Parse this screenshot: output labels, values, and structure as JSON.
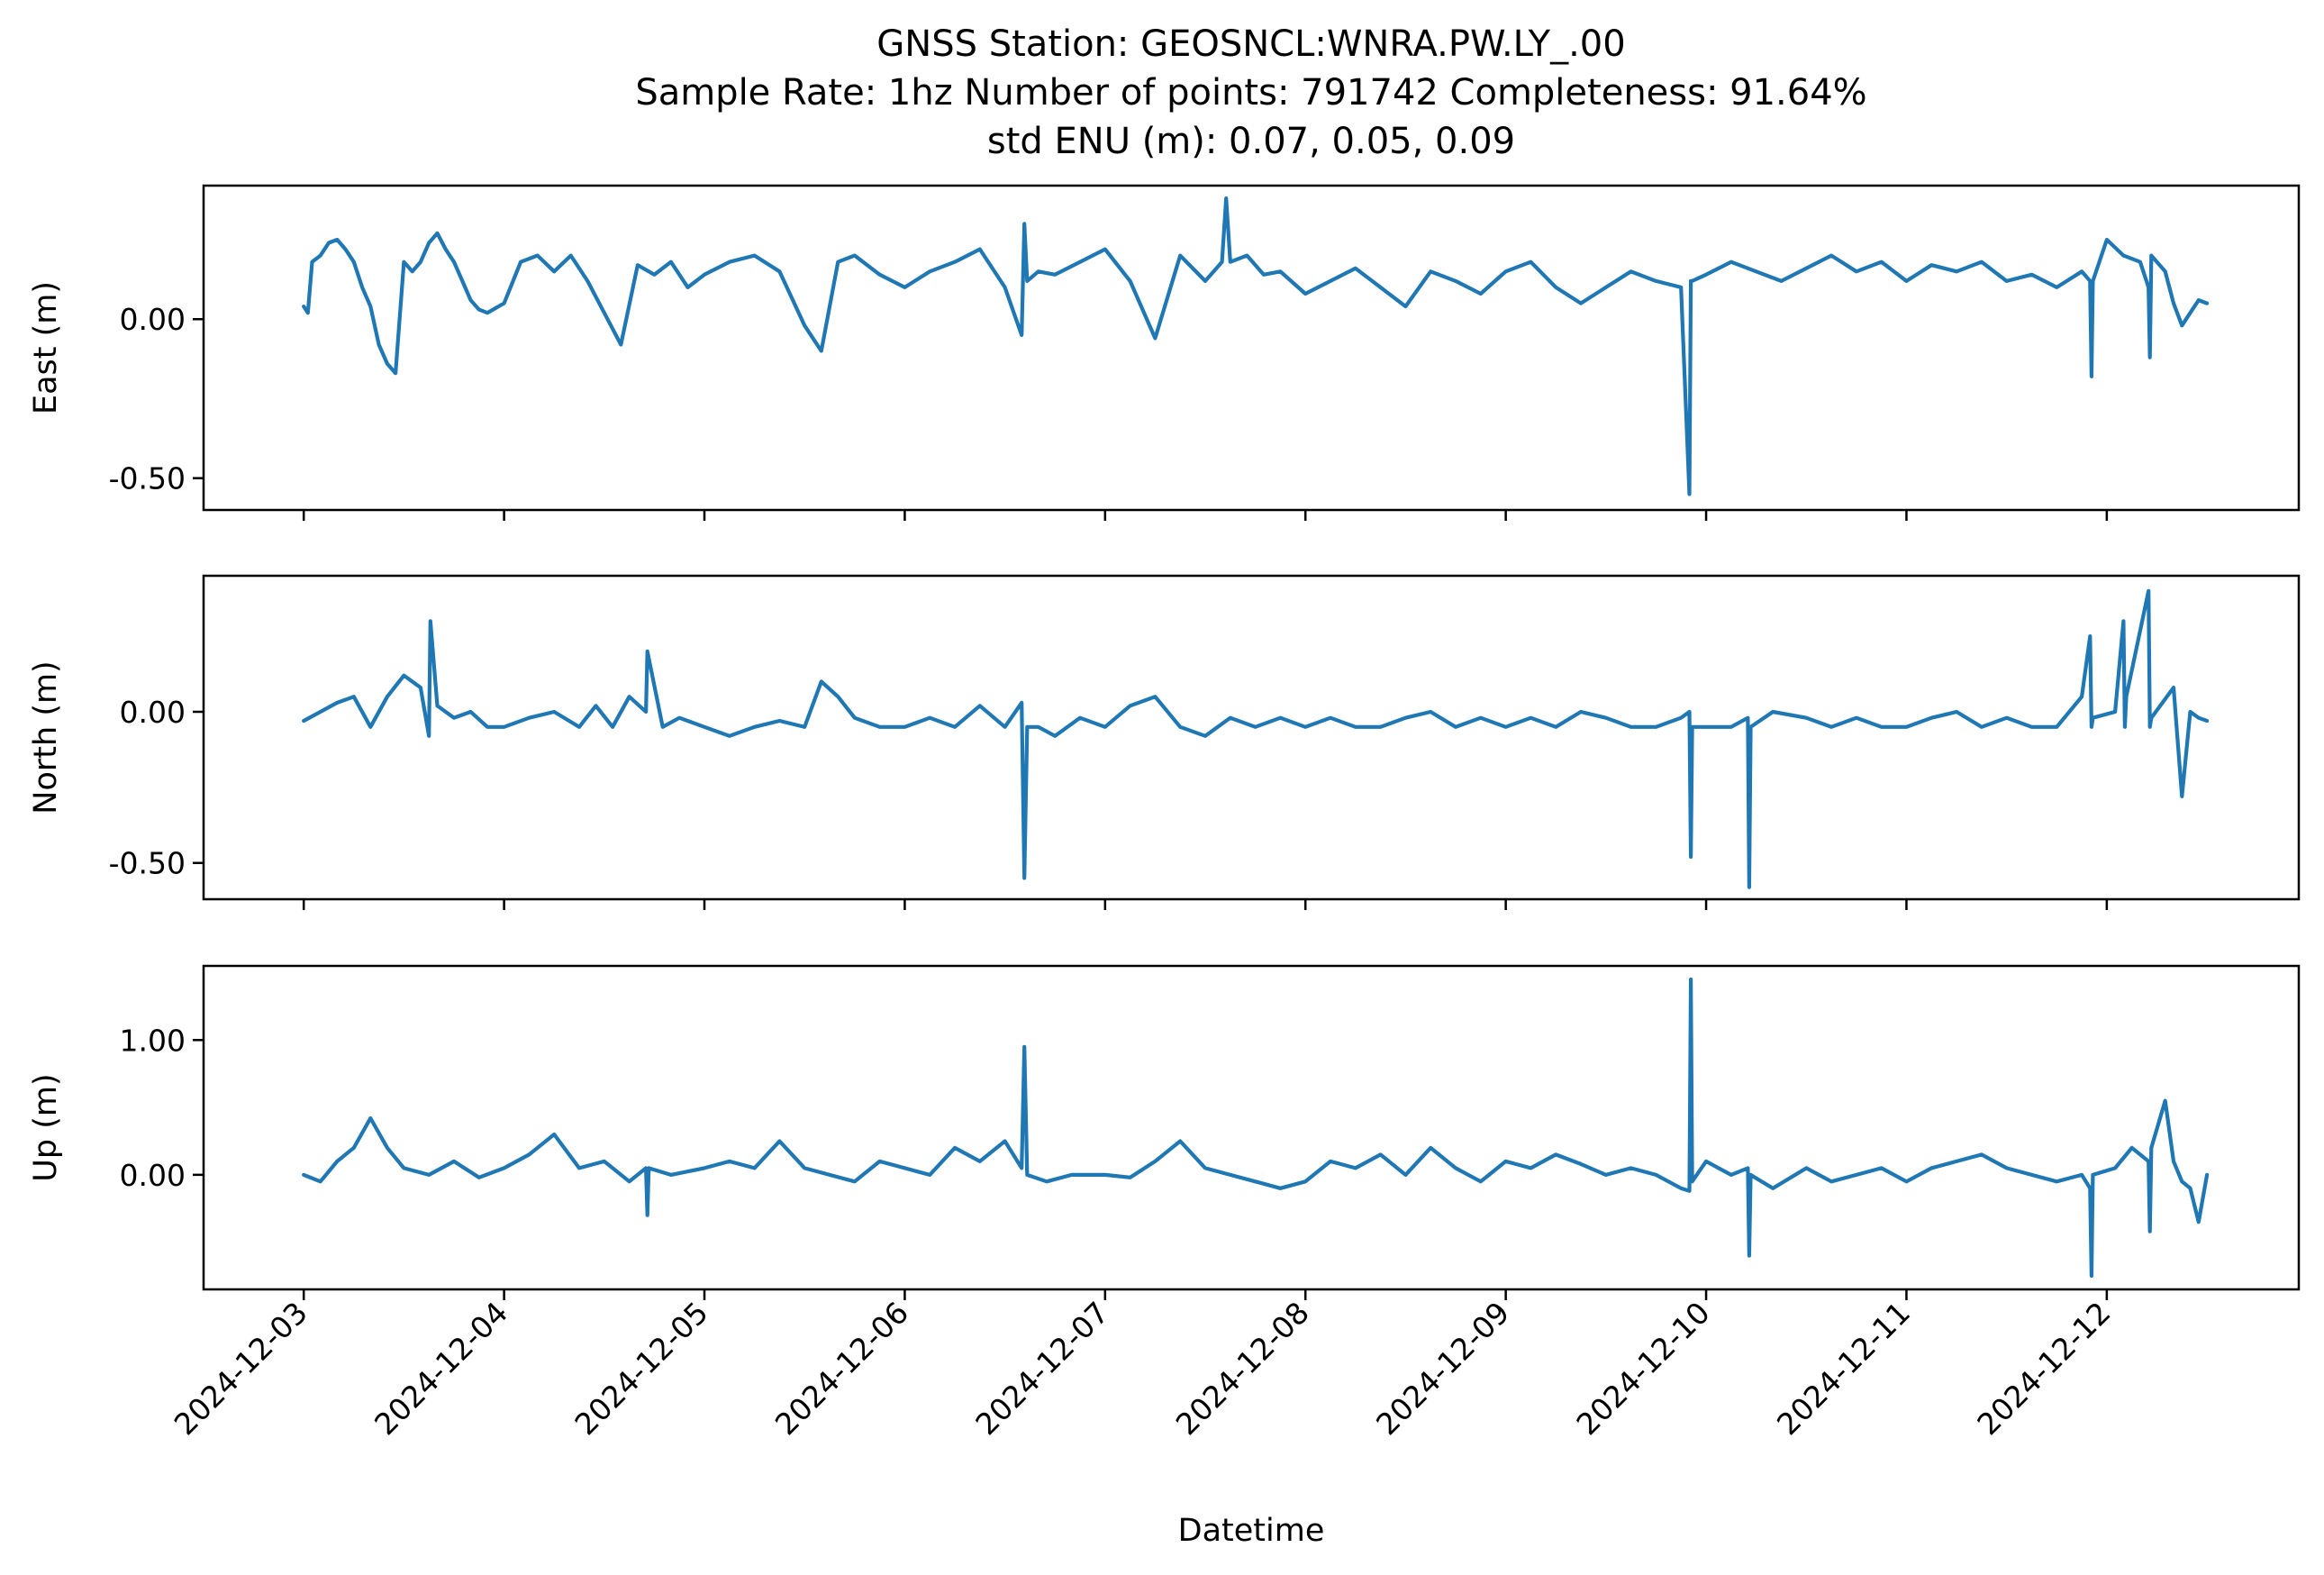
{
  "figure": {
    "title_lines": [
      "GNSS Station: GEOSNCL:WNRA.PW.LY_.00",
      "Sample Rate: 1hz   Number of points: 791742    Completeness:  91.64%",
      "std ENU (m):  0.07, 0.05, 0.09"
    ],
    "xlabel": "Datetime",
    "line_color": "#1f77b4"
  },
  "chart_data": [
    {
      "type": "line",
      "ylabel": "East (m)",
      "x_ticks": [
        "2024-12-03",
        "2024-12-04",
        "2024-12-05",
        "2024-12-06",
        "2024-12-07",
        "2024-12-08",
        "2024-12-09",
        "2024-12-10",
        "2024-12-11",
        "2024-12-12"
      ],
      "x_tick_labels_visible": false,
      "xlim": [
        "2024-12-02 12:00",
        "2024-12-12 23:00"
      ],
      "y_ticks": [
        0.0,
        -0.5
      ],
      "y_tick_labels": [
        "0.00",
        "-0.50"
      ],
      "ylim": [
        -0.6,
        0.42
      ],
      "grid": false,
      "series": [
        {
          "x": [
            "2024-12-03 00:00",
            "2024-12-03 00:30",
            "2024-12-03 01:00",
            "2024-12-03 02:00",
            "2024-12-03 03:00",
            "2024-12-03 04:00",
            "2024-12-03 05:00",
            "2024-12-03 06:00",
            "2024-12-03 07:00",
            "2024-12-03 08:00",
            "2024-12-03 09:00",
            "2024-12-03 10:00",
            "2024-12-03 11:00",
            "2024-12-03 12:00",
            "2024-12-03 13:00",
            "2024-12-03 14:00",
            "2024-12-03 15:00",
            "2024-12-03 16:00",
            "2024-12-03 17:00",
            "2024-12-03 18:00",
            "2024-12-03 19:00",
            "2024-12-03 20:00",
            "2024-12-03 21:00",
            "2024-12-03 22:00",
            "2024-12-04 00:00",
            "2024-12-04 02:00",
            "2024-12-04 04:00",
            "2024-12-04 06:00",
            "2024-12-04 08:00",
            "2024-12-04 10:00",
            "2024-12-04 12:00",
            "2024-12-04 14:00",
            "2024-12-04 16:00",
            "2024-12-04 18:00",
            "2024-12-04 20:00",
            "2024-12-04 22:00",
            "2024-12-05 00:00",
            "2024-12-05 03:00",
            "2024-12-05 06:00",
            "2024-12-05 09:00",
            "2024-12-05 12:00",
            "2024-12-05 14:00",
            "2024-12-05 16:00",
            "2024-12-05 18:00",
            "2024-12-05 21:00",
            "2024-12-06 00:00",
            "2024-12-06 03:00",
            "2024-12-06 06:00",
            "2024-12-06 09:00",
            "2024-12-06 12:00",
            "2024-12-06 14:00",
            "2024-12-06 14:20",
            "2024-12-06 14:40",
            "2024-12-06 16:00",
            "2024-12-06 18:00",
            "2024-12-06 21:00",
            "2024-12-07 00:00",
            "2024-12-07 03:00",
            "2024-12-07 06:00",
            "2024-12-07 09:00",
            "2024-12-07 12:00",
            "2024-12-07 14:00",
            "2024-12-07 14:30",
            "2024-12-07 15:00",
            "2024-12-07 17:00",
            "2024-12-07 19:00",
            "2024-12-07 21:00",
            "2024-12-08 00:00",
            "2024-12-08 03:00",
            "2024-12-08 06:00",
            "2024-12-08 09:00",
            "2024-12-08 12:00",
            "2024-12-08 15:00",
            "2024-12-08 18:00",
            "2024-12-08 21:00",
            "2024-12-09 00:00",
            "2024-12-09 03:00",
            "2024-12-09 06:00",
            "2024-12-09 09:00",
            "2024-12-09 12:00",
            "2024-12-09 15:00",
            "2024-12-09 18:00",
            "2024-12-09 21:00",
            "2024-12-09 22:00",
            "2024-12-09 22:10",
            "2024-12-09 22:20",
            "2024-12-10 00:00",
            "2024-12-10 03:00",
            "2024-12-10 06:00",
            "2024-12-10 09:00",
            "2024-12-10 12:00",
            "2024-12-10 15:00",
            "2024-12-10 18:00",
            "2024-12-10 21:00",
            "2024-12-11 00:00",
            "2024-12-11 03:00",
            "2024-12-11 06:00",
            "2024-12-11 09:00",
            "2024-12-11 12:00",
            "2024-12-11 15:00",
            "2024-12-11 18:00",
            "2024-12-11 21:00",
            "2024-12-11 22:00",
            "2024-12-11 22:10",
            "2024-12-11 22:20",
            "2024-12-12 00:00",
            "2024-12-12 02:00",
            "2024-12-12 04:00",
            "2024-12-12 05:00",
            "2024-12-12 05:10",
            "2024-12-12 05:20",
            "2024-12-12 07:00",
            "2024-12-12 08:00",
            "2024-12-12 09:00",
            "2024-12-12 10:00",
            "2024-12-12 11:00",
            "2024-12-12 12:00"
          ],
          "y": [
            0.04,
            0.02,
            0.18,
            0.2,
            0.24,
            0.25,
            0.22,
            0.18,
            0.1,
            0.04,
            -0.08,
            -0.14,
            -0.17,
            0.18,
            0.15,
            0.18,
            0.24,
            0.27,
            0.22,
            0.18,
            0.12,
            0.06,
            0.03,
            0.02,
            0.05,
            0.18,
            0.2,
            0.15,
            0.2,
            0.12,
            0.02,
            -0.08,
            0.17,
            0.14,
            0.18,
            0.1,
            0.14,
            0.18,
            0.2,
            0.15,
            -0.02,
            -0.1,
            0.18,
            0.2,
            0.14,
            0.1,
            0.15,
            0.18,
            0.22,
            0.1,
            -0.05,
            0.3,
            0.12,
            0.15,
            0.14,
            0.18,
            0.22,
            0.12,
            -0.06,
            0.2,
            0.12,
            0.18,
            0.38,
            0.18,
            0.2,
            0.14,
            0.15,
            0.08,
            0.12,
            0.16,
            0.1,
            0.04,
            0.15,
            0.12,
            0.08,
            0.15,
            0.18,
            0.1,
            0.05,
            0.1,
            0.15,
            0.12,
            0.1,
            -0.55,
            0.12,
            0.12,
            0.14,
            0.18,
            0.15,
            0.12,
            0.16,
            0.2,
            0.15,
            0.18,
            0.12,
            0.17,
            0.15,
            0.18,
            0.12,
            0.14,
            0.1,
            0.15,
            0.12,
            -0.18,
            0.12,
            0.25,
            0.2,
            0.18,
            0.1,
            -0.12,
            0.2,
            0.15,
            0.05,
            -0.02,
            0.02,
            0.06,
            0.05
          ]
        }
      ]
    },
    {
      "type": "line",
      "ylabel": "North (m)",
      "x_ticks": [
        "2024-12-03",
        "2024-12-04",
        "2024-12-05",
        "2024-12-06",
        "2024-12-07",
        "2024-12-08",
        "2024-12-09",
        "2024-12-10",
        "2024-12-11",
        "2024-12-12"
      ],
      "x_tick_labels_visible": false,
      "xlim": [
        "2024-12-02 12:00",
        "2024-12-12 23:00"
      ],
      "y_ticks": [
        0.0,
        -0.5
      ],
      "y_tick_labels": [
        "0.00",
        "-0.50"
      ],
      "ylim": [
        -0.62,
        0.45
      ],
      "grid": false,
      "series": [
        {
          "x": [
            "2024-12-03 00:00",
            "2024-12-03 02:00",
            "2024-12-03 04:00",
            "2024-12-03 06:00",
            "2024-12-03 08:00",
            "2024-12-03 10:00",
            "2024-12-03 12:00",
            "2024-12-03 14:00",
            "2024-12-03 15:00",
            "2024-12-03 15:10",
            "2024-12-03 16:00",
            "2024-12-03 18:00",
            "2024-12-03 20:00",
            "2024-12-03 22:00",
            "2024-12-04 00:00",
            "2024-12-04 03:00",
            "2024-12-04 06:00",
            "2024-12-04 09:00",
            "2024-12-04 11:00",
            "2024-12-04 13:00",
            "2024-12-04 15:00",
            "2024-12-04 17:00",
            "2024-12-04 17:10",
            "2024-12-04 19:00",
            "2024-12-04 21:00",
            "2024-12-05 00:00",
            "2024-12-05 03:00",
            "2024-12-05 06:00",
            "2024-12-05 09:00",
            "2024-12-05 12:00",
            "2024-12-05 14:00",
            "2024-12-05 16:00",
            "2024-12-05 18:00",
            "2024-12-05 21:00",
            "2024-12-06 00:00",
            "2024-12-06 03:00",
            "2024-12-06 06:00",
            "2024-12-06 09:00",
            "2024-12-06 12:00",
            "2024-12-06 14:00",
            "2024-12-06 14:20",
            "2024-12-06 14:40",
            "2024-12-06 16:00",
            "2024-12-06 18:00",
            "2024-12-06 21:00",
            "2024-12-07 00:00",
            "2024-12-07 03:00",
            "2024-12-07 06:00",
            "2024-12-07 09:00",
            "2024-12-07 12:00",
            "2024-12-07 15:00",
            "2024-12-07 18:00",
            "2024-12-07 21:00",
            "2024-12-08 00:00",
            "2024-12-08 03:00",
            "2024-12-08 06:00",
            "2024-12-08 09:00",
            "2024-12-08 12:00",
            "2024-12-08 15:00",
            "2024-12-08 18:00",
            "2024-12-08 21:00",
            "2024-12-09 00:00",
            "2024-12-09 03:00",
            "2024-12-09 06:00",
            "2024-12-09 09:00",
            "2024-12-09 12:00",
            "2024-12-09 15:00",
            "2024-12-09 18:00",
            "2024-12-09 21:00",
            "2024-12-09 22:00",
            "2024-12-09 22:10",
            "2024-12-09 22:20",
            "2024-12-10 00:00",
            "2024-12-10 03:00",
            "2024-12-10 05:00",
            "2024-12-10 05:10",
            "2024-12-10 05:20",
            "2024-12-10 08:00",
            "2024-12-10 12:00",
            "2024-12-10 15:00",
            "2024-12-10 18:00",
            "2024-12-10 21:00",
            "2024-12-11 00:00",
            "2024-12-11 03:00",
            "2024-12-11 06:00",
            "2024-12-11 09:00",
            "2024-12-11 12:00",
            "2024-12-11 15:00",
            "2024-12-11 18:00",
            "2024-12-11 21:00",
            "2024-12-11 22:00",
            "2024-12-11 22:10",
            "2024-12-11 22:20",
            "2024-12-12 01:00",
            "2024-12-12 02:00",
            "2024-12-12 02:10",
            "2024-12-12 02:20",
            "2024-12-12 05:00",
            "2024-12-12 05:10",
            "2024-12-12 05:20",
            "2024-12-12 08:00",
            "2024-12-12 09:00",
            "2024-12-12 10:00",
            "2024-12-12 11:00",
            "2024-12-12 12:00"
          ],
          "y": [
            -0.03,
            0.0,
            0.03,
            0.05,
            -0.05,
            0.05,
            0.12,
            0.08,
            -0.08,
            0.3,
            0.02,
            -0.02,
            0.0,
            -0.05,
            -0.05,
            -0.02,
            0.0,
            -0.05,
            0.02,
            -0.05,
            0.05,
            0.0,
            0.2,
            -0.05,
            -0.02,
            -0.05,
            -0.08,
            -0.05,
            -0.03,
            -0.05,
            0.1,
            0.05,
            -0.02,
            -0.05,
            -0.05,
            -0.02,
            -0.05,
            0.02,
            -0.05,
            0.03,
            -0.55,
            -0.05,
            -0.05,
            -0.08,
            -0.02,
            -0.05,
            0.02,
            0.05,
            -0.05,
            -0.08,
            -0.02,
            -0.05,
            -0.02,
            -0.05,
            -0.02,
            -0.05,
            -0.05,
            -0.02,
            0.0,
            -0.05,
            -0.02,
            -0.05,
            -0.02,
            -0.05,
            0.0,
            -0.02,
            -0.05,
            -0.05,
            -0.02,
            0.0,
            -0.48,
            -0.05,
            -0.05,
            -0.05,
            -0.02,
            -0.58,
            -0.05,
            0.0,
            -0.02,
            -0.05,
            -0.02,
            -0.05,
            -0.05,
            -0.02,
            0.0,
            -0.05,
            -0.02,
            -0.05,
            -0.05,
            0.05,
            0.25,
            -0.05,
            -0.02,
            0.0,
            0.3,
            -0.05,
            0.05,
            0.4,
            -0.05,
            -0.02,
            0.08,
            -0.28,
            0.0,
            -0.02,
            -0.03
          ]
        }
      ]
    },
    {
      "type": "line",
      "ylabel": "Up (m)",
      "x_ticks": [
        "2024-12-03",
        "2024-12-04",
        "2024-12-05",
        "2024-12-06",
        "2024-12-07",
        "2024-12-08",
        "2024-12-09",
        "2024-12-10",
        "2024-12-11",
        "2024-12-12"
      ],
      "x_tick_labels_visible": true,
      "xlim": [
        "2024-12-02 12:00",
        "2024-12-12 23:00"
      ],
      "y_ticks": [
        1.0,
        0.0
      ],
      "y_tick_labels": [
        "1.00",
        "0.00"
      ],
      "ylim": [
        -0.85,
        1.55
      ],
      "grid": false,
      "series": [
        {
          "x": [
            "2024-12-03 00:00",
            "2024-12-03 02:00",
            "2024-12-03 04:00",
            "2024-12-03 06:00",
            "2024-12-03 08:00",
            "2024-12-03 10:00",
            "2024-12-03 12:00",
            "2024-12-03 15:00",
            "2024-12-03 18:00",
            "2024-12-03 21:00",
            "2024-12-04 00:00",
            "2024-12-04 03:00",
            "2024-12-04 06:00",
            "2024-12-04 09:00",
            "2024-12-04 12:00",
            "2024-12-04 15:00",
            "2024-12-04 17:00",
            "2024-12-04 17:10",
            "2024-12-04 17:20",
            "2024-12-04 20:00",
            "2024-12-05 00:00",
            "2024-12-05 03:00",
            "2024-12-05 06:00",
            "2024-12-05 09:00",
            "2024-12-05 12:00",
            "2024-12-05 15:00",
            "2024-12-05 18:00",
            "2024-12-05 21:00",
            "2024-12-06 00:00",
            "2024-12-06 03:00",
            "2024-12-06 06:00",
            "2024-12-06 09:00",
            "2024-12-06 12:00",
            "2024-12-06 14:00",
            "2024-12-06 14:20",
            "2024-12-06 14:40",
            "2024-12-06 17:00",
            "2024-12-06 20:00",
            "2024-12-07 00:00",
            "2024-12-07 03:00",
            "2024-12-07 06:00",
            "2024-12-07 09:00",
            "2024-12-07 12:00",
            "2024-12-07 15:00",
            "2024-12-07 18:00",
            "2024-12-07 21:00",
            "2024-12-08 00:00",
            "2024-12-08 03:00",
            "2024-12-08 06:00",
            "2024-12-08 09:00",
            "2024-12-08 12:00",
            "2024-12-08 15:00",
            "2024-12-08 18:00",
            "2024-12-08 21:00",
            "2024-12-09 00:00",
            "2024-12-09 03:00",
            "2024-12-09 06:00",
            "2024-12-09 09:00",
            "2024-12-09 12:00",
            "2024-12-09 15:00",
            "2024-12-09 18:00",
            "2024-12-09 21:00",
            "2024-12-09 22:00",
            "2024-12-09 22:10",
            "2024-12-09 22:20",
            "2024-12-10 00:00",
            "2024-12-10 03:00",
            "2024-12-10 05:00",
            "2024-12-10 05:10",
            "2024-12-10 05:20",
            "2024-12-10 08:00",
            "2024-12-10 12:00",
            "2024-12-10 15:00",
            "2024-12-10 18:00",
            "2024-12-10 21:00",
            "2024-12-11 00:00",
            "2024-12-11 03:00",
            "2024-12-11 06:00",
            "2024-12-11 09:00",
            "2024-12-11 12:00",
            "2024-12-11 15:00",
            "2024-12-11 18:00",
            "2024-12-11 21:00",
            "2024-12-11 22:00",
            "2024-12-11 22:10",
            "2024-12-11 22:20",
            "2024-12-12 01:00",
            "2024-12-12 03:00",
            "2024-12-12 05:00",
            "2024-12-12 05:10",
            "2024-12-12 05:20",
            "2024-12-12 07:00",
            "2024-12-12 08:00",
            "2024-12-12 09:00",
            "2024-12-12 10:00",
            "2024-12-12 11:00",
            "2024-12-12 12:00"
          ],
          "y": [
            0.0,
            -0.05,
            0.1,
            0.2,
            0.42,
            0.2,
            0.05,
            0.0,
            0.1,
            -0.02,
            0.05,
            0.15,
            0.3,
            0.05,
            0.1,
            -0.05,
            0.05,
            -0.3,
            0.05,
            0.0,
            0.05,
            0.1,
            0.05,
            0.25,
            0.05,
            0.0,
            -0.05,
            0.1,
            0.05,
            0.0,
            0.2,
            0.1,
            0.25,
            0.05,
            0.95,
            0.0,
            -0.05,
            0.0,
            0.0,
            -0.02,
            0.1,
            0.25,
            0.05,
            0.0,
            -0.05,
            -0.1,
            -0.05,
            0.1,
            0.05,
            0.15,
            0.0,
            0.2,
            0.05,
            -0.05,
            0.1,
            0.05,
            0.15,
            0.08,
            0.0,
            0.05,
            0.0,
            -0.1,
            -0.12,
            1.45,
            -0.05,
            0.1,
            0.0,
            0.05,
            -0.6,
            0.0,
            -0.1,
            0.05,
            -0.05,
            0.0,
            0.05,
            -0.05,
            0.05,
            0.1,
            0.15,
            0.05,
            0.0,
            -0.05,
            0.0,
            -0.1,
            -0.75,
            0.0,
            0.05,
            0.2,
            0.1,
            -0.42,
            0.2,
            0.55,
            0.1,
            -0.05,
            -0.1,
            -0.35,
            0.0
          ]
        }
      ]
    }
  ]
}
